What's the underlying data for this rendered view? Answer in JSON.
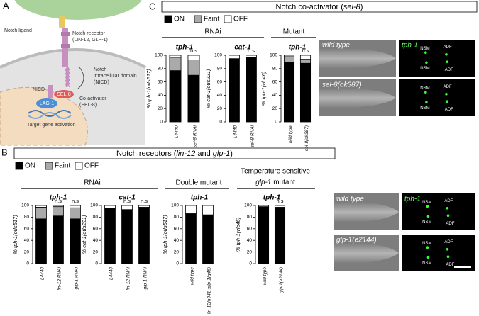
{
  "panel_a": {
    "label": "A",
    "texts": {
      "ligand": "Notch ligand",
      "receptor": "Notch receptor",
      "receptor_names": "(LIN-12, GLP-1)",
      "icd1": "Notch",
      "icd2": "intracellular domain",
      "icd3": "(NICD)",
      "nicd": "NICD",
      "sel8": "SEL-8",
      "lag1": "LAG-1",
      "coact1": "Co-activator",
      "coact2": "(SEL-8)",
      "target": "Target gene activation"
    }
  },
  "panel_c": {
    "label": "C",
    "title": [
      "Notch co-activator (",
      "sel-8",
      ")"
    ],
    "groups": [
      "RNAi",
      "Mutant"
    ],
    "images": [
      {
        "label": "wild type"
      },
      {
        "label": "tph-1",
        "cells": [
          "NSM",
          "ADF",
          "NSM",
          "ADF"
        ]
      },
      {
        "label": "sel-8(ok387)"
      },
      {
        "cells": [
          "NSM",
          "ADF",
          "NSM",
          "ADF"
        ]
      }
    ]
  },
  "panel_b": {
    "label": "B",
    "title": [
      "Notch receptors (",
      "lin-12",
      " and ",
      "glp-1",
      ")"
    ],
    "groups": [
      "RNAi",
      "Double mutant"
    ],
    "ts_group": [
      "Temperature sensitive",
      "glp-1",
      " mutant"
    ],
    "images": [
      {
        "label": "wild type"
      },
      {
        "label": "tph-1",
        "cells": [
          "NSM",
          "ADF",
          "NSM",
          "ADF"
        ]
      },
      {
        "label": "glp-1(e2144)"
      },
      {
        "cells": [
          "NSM",
          "ADF",
          "NSM",
          "ADF"
        ]
      }
    ]
  },
  "chart_data": [
    {
      "type": "bar",
      "stacked": true,
      "title": "tph-1",
      "ylabel": "% tph-1(otIs517)",
      "categories": [
        "L4440",
        "sel-8 RNAi"
      ],
      "ylim": [
        0,
        100
      ],
      "yticks": [
        0,
        20,
        40,
        60,
        80,
        100
      ],
      "series": [
        {
          "name": "ON",
          "color": "#000000",
          "values": [
            77,
            70
          ]
        },
        {
          "name": "Faint",
          "color": "#aaaaaa",
          "values": [
            20,
            23
          ]
        },
        {
          "name": "OFF",
          "color": "#ffffff",
          "values": [
            3,
            7
          ]
        }
      ],
      "annotations": [
        {
          "text": "n.s",
          "category": "sel-8 RNAi"
        }
      ]
    },
    {
      "type": "bar",
      "stacked": true,
      "title": "cat-1",
      "ylabel": "% cat-1(otIs221)",
      "categories": [
        "L4440",
        "sel-8 RNAi"
      ],
      "ylim": [
        0,
        100
      ],
      "yticks": [
        0,
        20,
        40,
        60,
        80,
        100
      ],
      "series": [
        {
          "name": "ON",
          "color": "#000000",
          "values": [
            95,
            97
          ]
        },
        {
          "name": "Faint",
          "color": "#aaaaaa",
          "values": [
            0,
            0
          ]
        },
        {
          "name": "OFF",
          "color": "#ffffff",
          "values": [
            5,
            3
          ]
        }
      ],
      "annotations": [
        {
          "text": "n.s",
          "category": "sel-8 RNAi"
        }
      ]
    },
    {
      "type": "bar",
      "stacked": true,
      "title": "tph-1",
      "ylabel": "% tph-1(vlc46)",
      "categories": [
        "wild type",
        "sel-8(ok387)"
      ],
      "ylim": [
        0,
        100
      ],
      "yticks": [
        0,
        20,
        40,
        60,
        80,
        100
      ],
      "series": [
        {
          "name": "ON",
          "color": "#000000",
          "values": [
            90,
            88
          ]
        },
        {
          "name": "Faint",
          "color": "#aaaaaa",
          "values": [
            8,
            6
          ]
        },
        {
          "name": "OFF",
          "color": "#ffffff",
          "values": [
            2,
            6
          ]
        }
      ],
      "annotations": [
        {
          "text": "n.s",
          "category": "sel-8(ok387)"
        }
      ]
    },
    {
      "type": "bar",
      "stacked": true,
      "title": "tph-1",
      "ylabel": "% tph-1(otIs517)",
      "categories": [
        "L4440",
        "lin-12 RNAi",
        "glp-1 RNAi"
      ],
      "ylim": [
        0,
        100
      ],
      "yticks": [
        0,
        20,
        40,
        60,
        80,
        100
      ],
      "series": [
        {
          "name": "ON",
          "color": "#000000",
          "values": [
            77,
            82,
            77
          ]
        },
        {
          "name": "Faint",
          "color": "#aaaaaa",
          "values": [
            20,
            16,
            19
          ]
        },
        {
          "name": "OFF",
          "color": "#ffffff",
          "values": [
            3,
            2,
            4
          ]
        }
      ],
      "annotations": [
        {
          "text": "n.s",
          "category": "lin-12 RNAi"
        },
        {
          "text": "n.s",
          "category": "glp-1 RNAi"
        }
      ]
    },
    {
      "type": "bar",
      "stacked": true,
      "title": "cat-1",
      "ylabel": "% cat-1(otIs221)",
      "categories": [
        "L4440",
        "lin-12 RNAi",
        "glp-1 RNAi"
      ],
      "ylim": [
        0,
        100
      ],
      "yticks": [
        0,
        20,
        40,
        60,
        80,
        100
      ],
      "series": [
        {
          "name": "ON",
          "color": "#000000",
          "values": [
            95,
            93,
            97
          ]
        },
        {
          "name": "Faint",
          "color": "#aaaaaa",
          "values": [
            0,
            0,
            0
          ]
        },
        {
          "name": "OFF",
          "color": "#ffffff",
          "values": [
            5,
            7,
            3
          ]
        }
      ],
      "annotations": [
        {
          "text": "n.s",
          "category": "lin-12 RNAi"
        },
        {
          "text": "n.s",
          "category": "glp-1 RNAi"
        }
      ]
    },
    {
      "type": "bar",
      "stacked": true,
      "title": "tph-1",
      "ylabel": "% tph-1(otIs517)",
      "categories": [
        "wild type",
        "lin-12(n941);glp-1(q46)"
      ],
      "ylim": [
        0,
        100
      ],
      "yticks": [
        0,
        20,
        40,
        60,
        80,
        100
      ],
      "series": [
        {
          "name": "ON",
          "color": "#000000",
          "values": [
            86,
            84
          ]
        },
        {
          "name": "Faint",
          "color": "#aaaaaa",
          "values": [
            0,
            0
          ]
        },
        {
          "name": "OFF",
          "color": "#ffffff",
          "values": [
            14,
            16
          ]
        }
      ],
      "annotations": []
    },
    {
      "type": "bar",
      "stacked": true,
      "title": "tph-1",
      "ylabel": "% tph-1(vlc46)",
      "categories": [
        "wild type",
        "glp-1(e2144)"
      ],
      "ylim": [
        0,
        100
      ],
      "yticks": [
        0,
        20,
        40,
        60,
        80,
        100
      ],
      "series": [
        {
          "name": "ON",
          "color": "#000000",
          "values": [
            98,
            97
          ]
        },
        {
          "name": "Faint",
          "color": "#aaaaaa",
          "values": [
            0,
            0
          ]
        },
        {
          "name": "OFF",
          "color": "#ffffff",
          "values": [
            2,
            3
          ]
        }
      ],
      "annotations": [
        {
          "text": "n.s",
          "category": "glp-1(e2144)"
        }
      ]
    }
  ]
}
